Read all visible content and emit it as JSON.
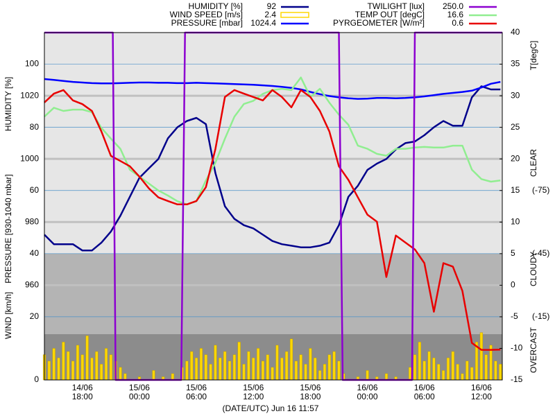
{
  "chart_data": {
    "type": "line",
    "x_label": "(DATE/UTC) Jun 16 11:57",
    "xlim": [
      14,
      62.2
    ],
    "xticks": [
      {
        "value": 18,
        "label": "14/06 18:00"
      },
      {
        "value": 24,
        "label": "15/06 00:00"
      },
      {
        "value": 30,
        "label": "15/06 06:00"
      },
      {
        "value": 36,
        "label": "15/06 12:00"
      },
      {
        "value": 42,
        "label": "15/06 18:00"
      },
      {
        "value": 48,
        "label": "16/06 00:00"
      },
      {
        "value": 54,
        "label": "16/06 06:00"
      },
      {
        "value": 60,
        "label": "16/06 12:00"
      }
    ],
    "y_label": "HUMIDITY [%]",
    "ylim": [
      0,
      110
    ],
    "yticks": [
      0,
      20,
      40,
      60,
      80,
      100
    ],
    "y2_label": "T[degC]",
    "y2lim": [
      -15,
      40
    ],
    "y2ticks": [
      -15,
      -10,
      -5,
      0,
      5,
      10,
      15,
      20,
      25,
      30,
      35,
      40
    ],
    "y3_label": "PRESSURE [930-1040 mbar]",
    "y3lim": [
      930,
      1040
    ],
    "y3ticks": [
      960,
      980,
      1000,
      1020
    ],
    "y4lim": [
      15,
      -150
    ],
    "y4ticks": [
      {
        "value": -75,
        "label": "(-75)"
      },
      {
        "value": -45,
        "label": "(-45)"
      },
      {
        "value": -15,
        "label": "(-15)"
      }
    ],
    "y5lim": [
      0,
      250
    ],
    "wind_label": "WIND [km/h]",
    "zones": [
      "CLEAR",
      "CLOUDY",
      "OVERCAST"
    ],
    "grid": true,
    "series": [
      {
        "name": "HUMIDITY [%]",
        "current": "92",
        "color": "#00008b",
        "type": "line",
        "axis": "y",
        "x": [
          14,
          15,
          16,
          17,
          18,
          19,
          20,
          21,
          22,
          23,
          24,
          25,
          26,
          27,
          28,
          29,
          30,
          31,
          32,
          33,
          34,
          35,
          36,
          37,
          38,
          39,
          40,
          41,
          42,
          43,
          44,
          45,
          46,
          47,
          48,
          49,
          50,
          51,
          52,
          53,
          54,
          55,
          56,
          57,
          58,
          59,
          60,
          61,
          62
        ],
        "values": [
          46,
          43,
          43,
          43,
          41,
          41,
          43.5,
          47,
          52,
          58,
          64,
          67,
          70,
          76.5,
          80,
          82,
          83,
          81,
          65.5,
          55,
          51,
          49,
          48,
          46,
          44,
          43,
          42.5,
          42,
          42,
          42.5,
          43.5,
          49,
          58,
          61.5,
          66.5,
          68.5,
          70,
          73,
          75,
          75.5,
          77.5,
          80,
          82,
          80.5,
          80.5,
          89.5,
          93,
          92,
          92
        ]
      },
      {
        "name": "WIND SPEED [m/s]",
        "current": "2.4",
        "color": "#ffd700",
        "type": "bar",
        "axis": "y",
        "x": [
          14,
          14.5,
          15,
          15.5,
          16,
          16.5,
          17,
          17.5,
          18,
          18.5,
          19,
          19.5,
          20,
          20.5,
          21,
          21.5,
          22,
          22.5,
          23,
          23.5,
          24,
          24.5,
          25,
          25.5,
          26,
          26.5,
          27,
          27.5,
          28,
          28.5,
          29,
          29.5,
          30,
          30.5,
          31,
          31.5,
          32,
          32.5,
          33,
          33.5,
          34,
          34.5,
          35,
          35.5,
          36,
          36.5,
          37,
          37.5,
          38,
          38.5,
          39,
          39.5,
          40,
          40.5,
          41,
          41.5,
          42,
          42.5,
          43,
          43.5,
          44,
          44.5,
          45,
          45.5,
          46,
          46.5,
          47,
          47.5,
          48,
          48.5,
          49,
          49.5,
          50,
          50.5,
          51,
          51.5,
          52,
          52.5,
          53,
          53.5,
          54,
          54.5,
          55,
          55.5,
          56,
          56.5,
          57,
          57.5,
          58,
          58.5,
          59,
          59.5,
          60,
          60.5,
          61,
          61.5,
          62
        ],
        "values": [
          8,
          6,
          10,
          7,
          12,
          9,
          6,
          11,
          8,
          14,
          7,
          9,
          5,
          10,
          8,
          6,
          4,
          2,
          0,
          0,
          1,
          0,
          0,
          3,
          0,
          1,
          0,
          2,
          0,
          4,
          6,
          9,
          7,
          10,
          8,
          5,
          11,
          7,
          9,
          6,
          8,
          12,
          5,
          9,
          7,
          10,
          6,
          8,
          4,
          11,
          7,
          9,
          13,
          6,
          8,
          5,
          10,
          7,
          3,
          5,
          8,
          9,
          6,
          2,
          0,
          0,
          1,
          0,
          3,
          0,
          1,
          0,
          2,
          0,
          1,
          0,
          0,
          4,
          8,
          12,
          6,
          9,
          7,
          5,
          3,
          7,
          9,
          5,
          2,
          6,
          4,
          12,
          15,
          8,
          11,
          6,
          5
        ]
      },
      {
        "name": "PRESSURE [mbar]",
        "current": "1024.4",
        "color": "#0000ff",
        "type": "line",
        "axis": "y3",
        "x": [
          14,
          15,
          16,
          17,
          18,
          19,
          20,
          21,
          22,
          23,
          24,
          25,
          26,
          27,
          28,
          29,
          30,
          31,
          32,
          33,
          34,
          35,
          36,
          37,
          38,
          39,
          40,
          41,
          42,
          43,
          44,
          45,
          46,
          47,
          48,
          49,
          50,
          51,
          52,
          53,
          54,
          55,
          56,
          57,
          58,
          59,
          60,
          61,
          62
        ],
        "values": [
          1025.3,
          1025.0,
          1024.7,
          1024.4,
          1024.2,
          1024.0,
          1023.9,
          1023.9,
          1024.0,
          1024.1,
          1024.2,
          1024.2,
          1024.1,
          1024.1,
          1024.0,
          1024.0,
          1024.1,
          1024.0,
          1023.9,
          1023.8,
          1023.7,
          1023.6,
          1023.5,
          1023.3,
          1023.1,
          1022.8,
          1022.5,
          1022.0,
          1021.2,
          1020.5,
          1019.9,
          1019.5,
          1019.2,
          1019.0,
          1019.1,
          1019.3,
          1019.3,
          1019.2,
          1019.3,
          1019.5,
          1019.8,
          1020.2,
          1020.6,
          1020.9,
          1021.2,
          1021.6,
          1022.6,
          1023.8,
          1024.4
        ]
      },
      {
        "name": "TWILIGHT [lux]",
        "current": "250.0",
        "color": "#8c00d0",
        "type": "line",
        "axis": "y5",
        "x": [
          14,
          21.2,
          21.5,
          28.4,
          28.8,
          45.0,
          45.4,
          52.7,
          53.0,
          62.2
        ],
        "values": [
          250,
          250,
          0,
          0,
          250,
          250,
          0,
          0,
          250,
          250
        ]
      },
      {
        "name": "TEMP OUT [degC]",
        "current": "16.6",
        "color": "#90ee90",
        "type": "line",
        "axis": "y2",
        "x": [
          14,
          15,
          16,
          17,
          18,
          19,
          20,
          21,
          22,
          23,
          24,
          25,
          26,
          27,
          28,
          29,
          30,
          31,
          32,
          33,
          34,
          35,
          36,
          37,
          38,
          39,
          40,
          41,
          42,
          43,
          44,
          45,
          46,
          47,
          48,
          49,
          50,
          51,
          52,
          53,
          54,
          55,
          56,
          57,
          58,
          59,
          60,
          61,
          62
        ],
        "values": [
          26.7,
          28.1,
          27.6,
          27.8,
          27.8,
          27.4,
          24.9,
          23.2,
          21.6,
          18.3,
          17.2,
          16.1,
          15,
          14.2,
          13.3,
          12.8,
          13.3,
          16.6,
          19.4,
          23.2,
          26.7,
          28.7,
          29.2,
          30.3,
          30.9,
          31.1,
          30.9,
          32.9,
          29.8,
          31.1,
          28.9,
          27,
          25.4,
          22.1,
          21.6,
          20.8,
          20.5,
          21.6,
          21.6,
          21.8,
          21.9,
          21.8,
          21.8,
          22.1,
          22.1,
          18.3,
          16.8,
          16.4,
          16.6
        ]
      },
      {
        "name": "PYRGEOMETER [W/m²]",
        "current": "0.6",
        "color": "#e80000",
        "type": "line",
        "axis": "y4",
        "x": [
          14,
          15,
          16,
          17,
          18,
          19,
          20,
          21,
          22,
          23,
          24,
          25,
          26,
          27,
          28,
          29,
          30,
          31,
          32,
          33,
          34,
          35,
          36,
          37,
          38,
          39,
          40,
          41,
          42,
          43,
          44,
          45,
          46,
          47,
          48,
          49,
          50,
          51,
          52,
          53,
          54,
          55,
          56,
          57,
          58,
          59,
          60,
          61,
          62
        ],
        "values": [
          -116.8,
          -121,
          -122.7,
          -117.8,
          -116,
          -112.8,
          -103,
          -91.4,
          -89,
          -86.5,
          -81.6,
          -76,
          -71.7,
          -70,
          -68.4,
          -68.4,
          -70,
          -76.6,
          -94.7,
          -119.4,
          -122.7,
          -121,
          -119.4,
          -117.8,
          -122.7,
          -119.4,
          -114.5,
          -122.7,
          -119.4,
          -112.8,
          -103,
          -86.5,
          -80,
          -71.7,
          -63.5,
          -60.2,
          -33.9,
          -53.6,
          -50.3,
          -47,
          -40.5,
          -17.4,
          -40.5,
          -38.8,
          -27.3,
          -2.6,
          0.7,
          0.7,
          0.6
        ]
      }
    ]
  }
}
